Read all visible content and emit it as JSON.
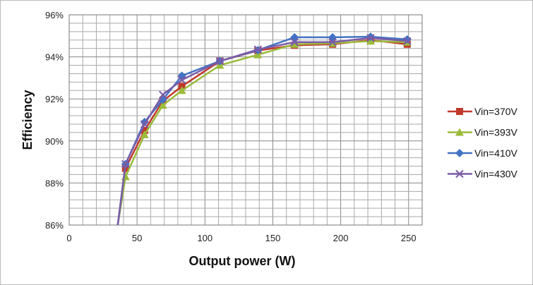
{
  "chart_data": {
    "type": "line",
    "title": "",
    "xlabel": "Output power (W)",
    "ylabel": "Efficiency",
    "xlim": [
      0,
      260
    ],
    "ylim": [
      86,
      96
    ],
    "xticks": [
      0,
      50,
      100,
      150,
      200,
      250
    ],
    "yticks": [
      "86%",
      "88%",
      "90%",
      "92%",
      "94%",
      "96%"
    ],
    "grid": true,
    "legend": "right",
    "x": [
      41.5,
      55.5,
      69,
      83,
      111,
      139,
      166,
      194,
      222,
      249
    ],
    "series": [
      {
        "name": "Vin=370V",
        "color": "#c0392b",
        "marker": "square",
        "values": [
          88.7,
          90.5,
          91.9,
          92.6,
          93.8,
          94.3,
          94.55,
          94.6,
          94.8,
          94.6
        ]
      },
      {
        "name": "Vin=393V",
        "color": "#9bbb3b",
        "marker": "triangle",
        "values": [
          88.3,
          90.3,
          91.7,
          92.4,
          93.6,
          94.1,
          94.6,
          94.65,
          94.75,
          94.7
        ]
      },
      {
        "name": "Vin=410V",
        "color": "#4472c4",
        "marker": "diamond",
        "values": [
          88.9,
          90.9,
          91.97,
          93.1,
          93.8,
          94.32,
          94.93,
          94.93,
          94.96,
          94.83
        ]
      },
      {
        "name": "Vin=430V",
        "color": "#7a5ca8",
        "marker": "x",
        "values": [
          88.9,
          90.8,
          92.2,
          92.9,
          93.8,
          94.35,
          94.7,
          94.7,
          94.9,
          94.75
        ]
      }
    ]
  }
}
